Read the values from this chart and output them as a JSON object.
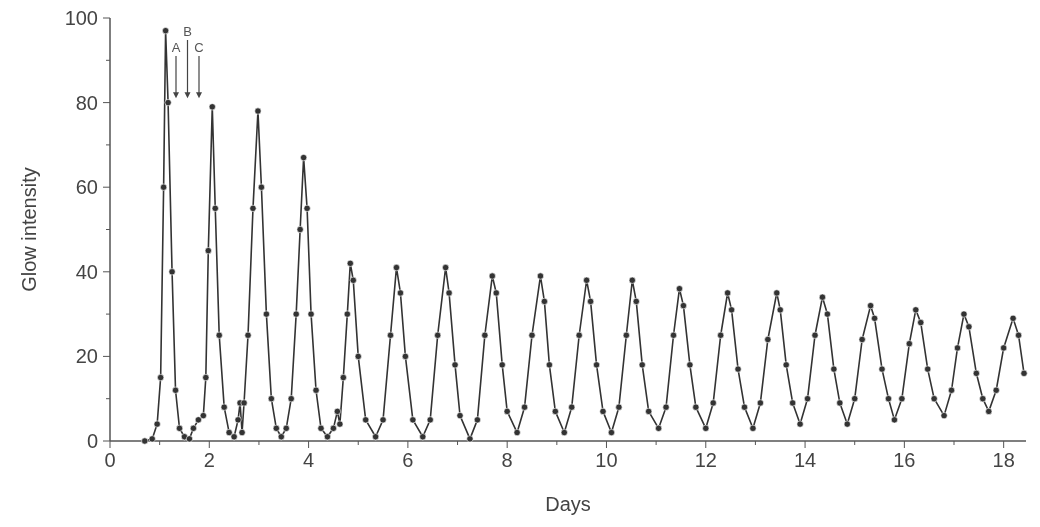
{
  "chart_data": {
    "type": "line",
    "xlabel": "Days",
    "ylabel": "Glow intensity",
    "xlim": [
      0,
      18.45
    ],
    "ylim": [
      0,
      100
    ],
    "xticks": [
      0,
      {
        "value": 1,
        "label": null
      },
      2,
      {
        "value": 3,
        "label": null
      },
      4,
      {
        "value": 5,
        "label": null
      },
      6,
      {
        "value": 7,
        "label": null
      },
      8,
      {
        "value": 9,
        "label": null
      },
      10,
      {
        "value": 11,
        "label": null
      },
      12,
      {
        "value": 13,
        "label": null
      },
      14,
      {
        "value": 15,
        "label": null
      },
      16,
      {
        "value": 17,
        "label": null
      },
      18
    ],
    "yticks": [
      0,
      {
        "value": 10,
        "label": null
      },
      20,
      {
        "value": 30,
        "label": null
      },
      40,
      {
        "value": 50,
        "label": null
      },
      60,
      {
        "value": 70,
        "label": null
      },
      80,
      {
        "value": 90,
        "label": null
      },
      100
    ],
    "grid": false,
    "marker": "circle",
    "line_style": "solid",
    "annotations": [
      "A",
      "B",
      "C"
    ],
    "series": [
      {
        "color": "#333333",
        "x": [
          0.7,
          0.85,
          0.95,
          1.02,
          1.08,
          1.12,
          1.17,
          1.25,
          1.32,
          1.4,
          1.5,
          1.6,
          1.68,
          1.78,
          1.88,
          1.93,
          1.98,
          2.06,
          2.12,
          2.2,
          2.3,
          2.4,
          2.5,
          2.58,
          2.62,
          2.66,
          2.7,
          2.78,
          2.88,
          2.98,
          3.05,
          3.15,
          3.25,
          3.35,
          3.45,
          3.55,
          3.65,
          3.75,
          3.83,
          3.9,
          3.97,
          4.05,
          4.15,
          4.25,
          4.38,
          4.5,
          4.58,
          4.63,
          4.7,
          4.78,
          4.84,
          4.9,
          5.0,
          5.15,
          5.35,
          5.5,
          5.65,
          5.77,
          5.85,
          5.95,
          6.1,
          6.3,
          6.45,
          6.6,
          6.76,
          6.83,
          6.95,
          7.05,
          7.25,
          7.4,
          7.55,
          7.7,
          7.78,
          7.9,
          8.0,
          8.2,
          8.35,
          8.5,
          8.67,
          8.75,
          8.85,
          8.97,
          9.15,
          9.3,
          9.45,
          9.6,
          9.68,
          9.8,
          9.93,
          10.1,
          10.25,
          10.4,
          10.52,
          10.6,
          10.72,
          10.85,
          11.05,
          11.2,
          11.35,
          11.47,
          11.55,
          11.68,
          11.8,
          12.0,
          12.15,
          12.3,
          12.44,
          12.52,
          12.65,
          12.78,
          12.95,
          13.1,
          13.25,
          13.43,
          13.5,
          13.62,
          13.75,
          13.9,
          14.05,
          14.2,
          14.35,
          14.45,
          14.58,
          14.7,
          14.85,
          15.0,
          15.15,
          15.32,
          15.4,
          15.55,
          15.68,
          15.8,
          15.95,
          16.1,
          16.23,
          16.33,
          16.47,
          16.6,
          16.8,
          16.95,
          17.07,
          17.2,
          17.3,
          17.45,
          17.58,
          17.7,
          17.85,
          18.0,
          18.19,
          18.3,
          18.41
        ],
        "values": [
          0,
          0.5,
          4,
          15,
          60,
          97,
          80,
          40,
          12,
          3,
          1,
          0.5,
          3,
          5,
          6,
          15,
          45,
          79,
          55,
          25,
          8,
          2,
          1,
          5,
          9,
          2,
          9,
          25,
          55,
          78,
          60,
          30,
          10,
          3,
          1,
          3,
          10,
          30,
          50,
          67,
          55,
          30,
          12,
          3,
          1,
          3,
          7,
          4,
          15,
          30,
          42,
          38,
          20,
          5,
          1,
          5,
          25,
          41,
          35,
          20,
          5,
          1,
          5,
          25,
          41,
          35,
          18,
          6,
          0.5,
          5,
          25,
          39,
          35,
          18,
          7,
          2,
          8,
          25,
          39,
          33,
          18,
          7,
          2,
          8,
          25,
          38,
          33,
          18,
          7,
          2,
          8,
          25,
          38,
          33,
          18,
          7,
          3,
          8,
          25,
          36,
          32,
          18,
          8,
          3,
          9,
          25,
          35,
          31,
          17,
          8,
          3,
          9,
          24,
          35,
          31,
          18,
          9,
          4,
          10,
          25,
          34,
          30,
          17,
          9,
          4,
          10,
          24,
          32,
          29,
          17,
          10,
          5,
          10,
          23,
          31,
          28,
          17,
          10,
          6,
          12,
          22,
          30,
          27,
          16,
          10,
          7,
          12,
          22,
          29,
          25,
          16
        ]
      }
    ]
  }
}
